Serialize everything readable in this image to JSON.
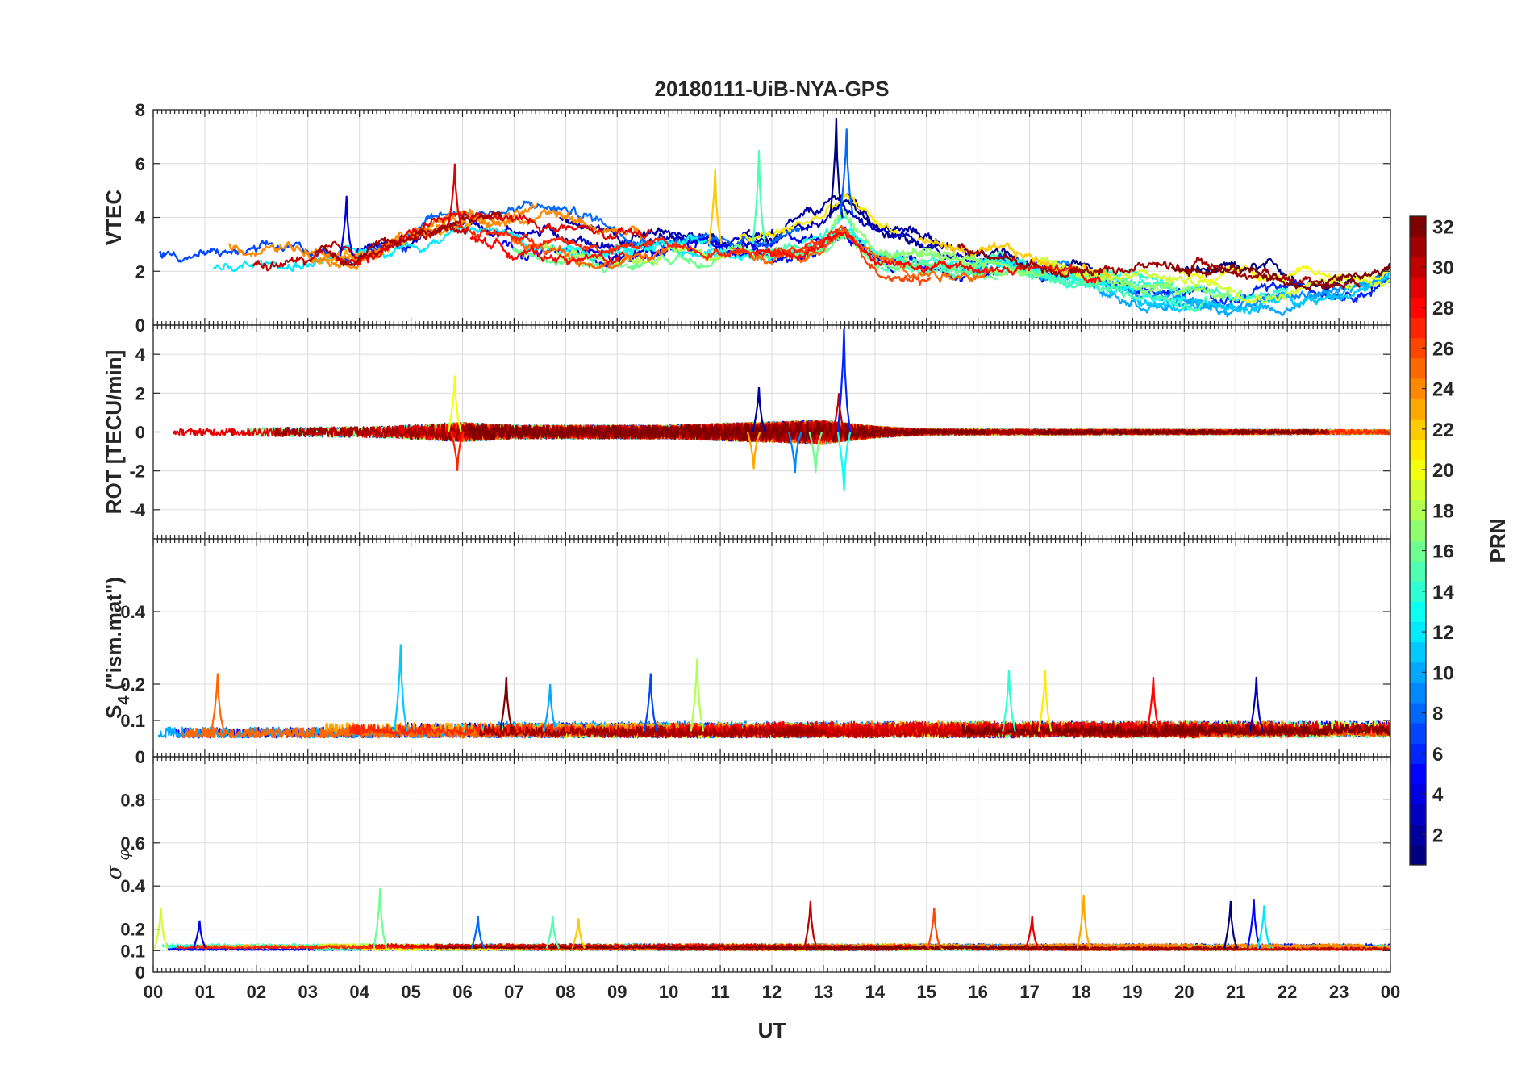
{
  "chart_data": {
    "type": "line",
    "title": "20180111-UiB-NYA-GPS",
    "xlabel": "UT",
    "x_ticks": [
      "00",
      "01",
      "02",
      "03",
      "04",
      "05",
      "06",
      "07",
      "08",
      "09",
      "10",
      "11",
      "12",
      "13",
      "14",
      "15",
      "16",
      "17",
      "18",
      "19",
      "20",
      "21",
      "22",
      "23",
      "00"
    ],
    "x_range_hours": [
      0,
      24
    ],
    "grid": true,
    "panels": [
      {
        "name": "VTEC",
        "ylabel": "VTEC",
        "ylim": [
          0,
          8
        ],
        "yticks": [
          "0",
          "2",
          "4",
          "6",
          "8"
        ],
        "baseline": [
          [
            0,
            2.5
          ],
          [
            2,
            2.4
          ],
          [
            4,
            2.6
          ],
          [
            5,
            3.2
          ],
          [
            6,
            3.8
          ],
          [
            7,
            3.6
          ],
          [
            8,
            3.4
          ],
          [
            9,
            3.0
          ],
          [
            10,
            3.1
          ],
          [
            11,
            3.0
          ],
          [
            12,
            3.0
          ],
          [
            13,
            3.6
          ],
          [
            13.4,
            4.2
          ],
          [
            14,
            3.2
          ],
          [
            15,
            2.8
          ],
          [
            16,
            2.5
          ],
          [
            17,
            2.2
          ],
          [
            18,
            2.0
          ],
          [
            19,
            1.9
          ],
          [
            20,
            1.7
          ],
          [
            21,
            1.5
          ],
          [
            22,
            1.5
          ],
          [
            23,
            1.6
          ],
          [
            24,
            1.9
          ]
        ],
        "spread": 1.0,
        "peaks": [
          [
            13.25,
            7.7
          ],
          [
            13.45,
            7.3
          ],
          [
            11.75,
            6.5
          ],
          [
            10.9,
            5.8
          ],
          [
            5.85,
            6.0
          ],
          [
            3.75,
            4.8
          ]
        ]
      },
      {
        "name": "ROT",
        "ylabel": "ROT [TECU/min]",
        "ylim": [
          -5.5,
          5.5
        ],
        "yticks": [
          "-4",
          "-2",
          "0",
          "2",
          "4"
        ],
        "baseline": [
          [
            0,
            0
          ],
          [
            24,
            0
          ]
        ],
        "noise": [
          [
            0,
            0.15
          ],
          [
            4.5,
            0.3
          ],
          [
            6,
            0.5
          ],
          [
            7,
            0.35
          ],
          [
            10,
            0.35
          ],
          [
            11,
            0.45
          ],
          [
            13,
            0.6
          ],
          [
            14,
            0.3
          ],
          [
            15,
            0.15
          ],
          [
            24,
            0.12
          ]
        ],
        "peaks": [
          [
            13.4,
            5.3
          ],
          [
            13.4,
            -3.0
          ],
          [
            5.85,
            2.9
          ],
          [
            5.9,
            -2.0
          ],
          [
            11.75,
            2.3
          ],
          [
            12.45,
            -2.1
          ],
          [
            12.85,
            -2.1
          ],
          [
            11.65,
            -1.9
          ],
          [
            13.3,
            2.0
          ]
        ]
      },
      {
        "name": "S4",
        "ylabel": "S4 (\"ism.mat\")",
        "ylabel_main": "S",
        "ylabel_sub": "4",
        "ylabel_tail": " (\"ism.mat\")",
        "ylim": [
          0,
          0.6
        ],
        "yticks": [
          "0",
          "0.1",
          "0.2",
          "0.4"
        ],
        "baseline": [
          [
            0,
            0.07
          ],
          [
            24,
            0.07
          ]
        ],
        "noise": [
          [
            0,
            0.03
          ],
          [
            24,
            0.03
          ]
        ],
        "peaks": [
          [
            4.8,
            0.31
          ],
          [
            10.55,
            0.27
          ],
          [
            1.25,
            0.23
          ],
          [
            6.85,
            0.22
          ],
          [
            9.65,
            0.23
          ],
          [
            16.6,
            0.24
          ],
          [
            17.3,
            0.24
          ],
          [
            19.4,
            0.22
          ],
          [
            21.4,
            0.22
          ],
          [
            7.7,
            0.2
          ]
        ]
      },
      {
        "name": "sigma_phi",
        "ylabel": "σ φ",
        "ylabel_main": "σ",
        "ylabel_sub": "φ",
        "ylim": [
          0,
          1.0
        ],
        "yticks": [
          "0",
          "0.1",
          "0.2",
          "0.4",
          "0.6",
          "0.8"
        ],
        "baseline": [
          [
            0,
            0.11
          ],
          [
            24,
            0.11
          ]
        ],
        "noise": [
          [
            0,
            0.015
          ],
          [
            24,
            0.015
          ]
        ],
        "peaks": [
          [
            4.4,
            0.39
          ],
          [
            18.05,
            0.36
          ],
          [
            12.75,
            0.33
          ],
          [
            21.35,
            0.34
          ],
          [
            21.55,
            0.31
          ],
          [
            0.15,
            0.3
          ],
          [
            15.15,
            0.3
          ],
          [
            20.9,
            0.33
          ],
          [
            6.3,
            0.26
          ],
          [
            7.75,
            0.26
          ],
          [
            8.25,
            0.25
          ],
          [
            17.05,
            0.26
          ],
          [
            0.9,
            0.24
          ]
        ]
      }
    ],
    "series_count": 32,
    "colorbar": {
      "label": "PRN",
      "range": [
        1,
        32
      ],
      "ticks": [
        "2",
        "4",
        "6",
        "8",
        "10",
        "12",
        "14",
        "16",
        "18",
        "20",
        "22",
        "24",
        "26",
        "28",
        "30",
        "32"
      ],
      "colormap": "jet"
    }
  }
}
